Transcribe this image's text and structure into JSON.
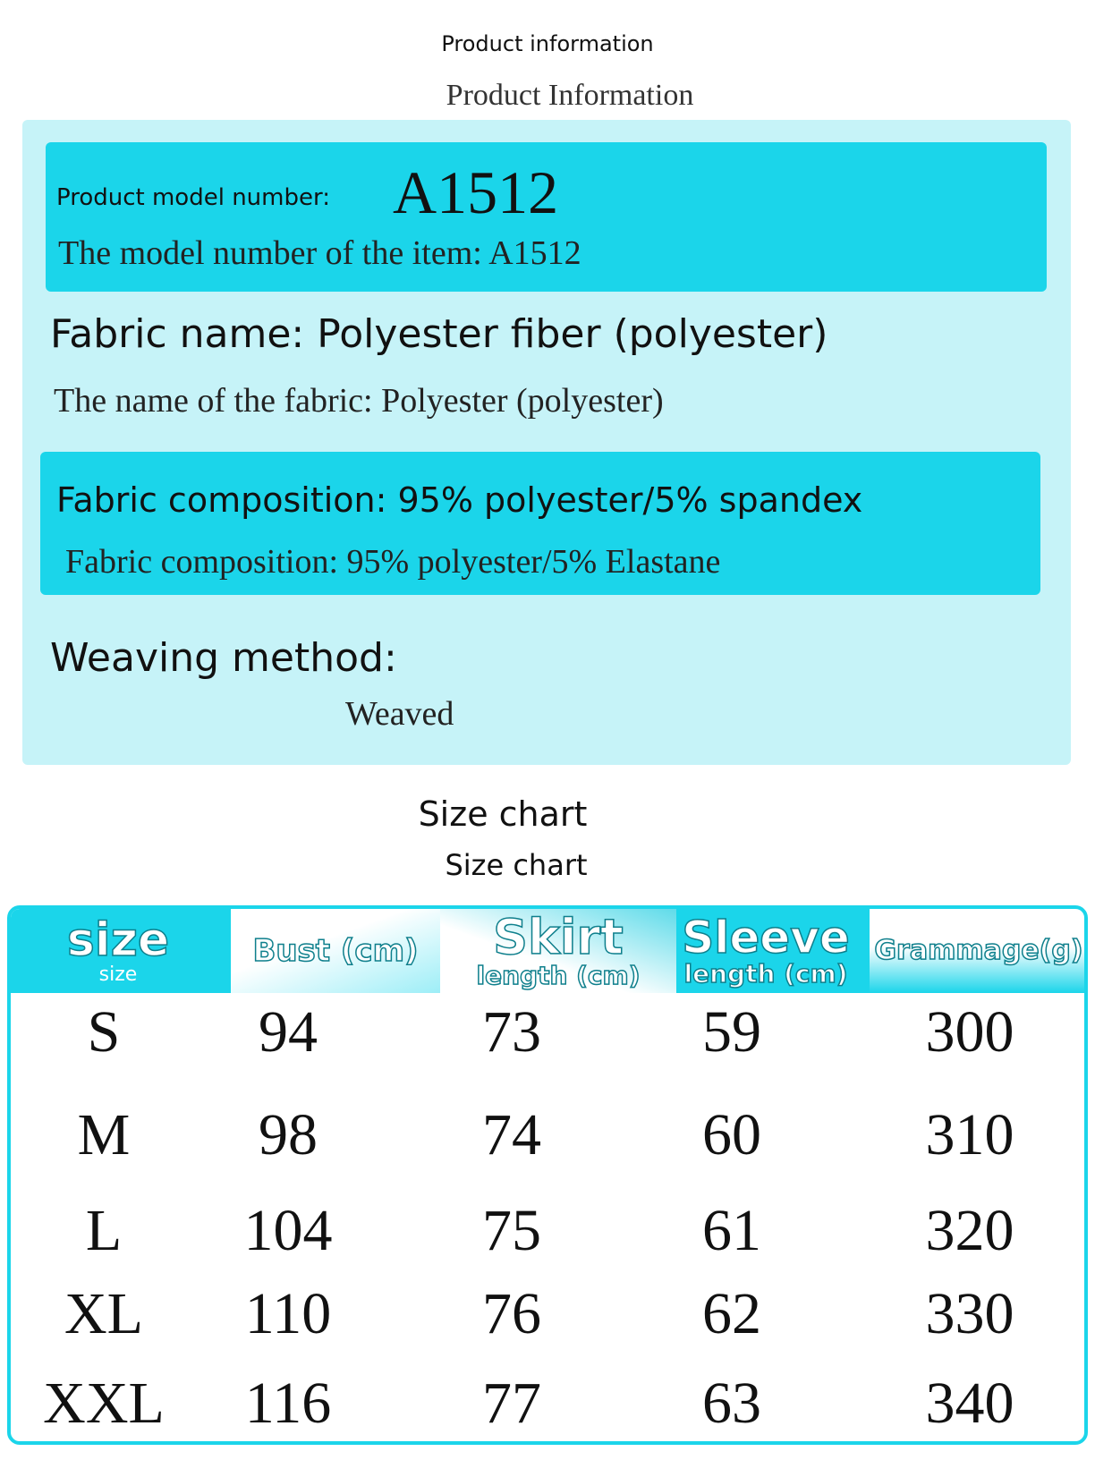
{
  "header": {
    "title": "Product information",
    "subtitle": "Product Information"
  },
  "model": {
    "label": "Product model number:",
    "value": "A1512",
    "translation": "The model number of the item:  A1512"
  },
  "fabric_name": {
    "label": "Fabric name: Polyester fiber (polyester)",
    "translation": "The name of the fabric:  Polyester (polyester)"
  },
  "composition": {
    "label": "Fabric composition: 95% polyester/5% spandex",
    "translation": "Fabric composition:  95% polyester/5% Elastane"
  },
  "weaving": {
    "label": "Weaving method:",
    "translation": "Weaved"
  },
  "size_chart": {
    "title": "Size chart",
    "subtitle": "Size chart",
    "columns": [
      {
        "main": "size",
        "sub": "size"
      },
      {
        "main": "Bust (cm)",
        "sub": ""
      },
      {
        "main": "Skirt",
        "sub": "length (cm)"
      },
      {
        "main": "Sleeve",
        "sub": "length (cm)"
      },
      {
        "main": "Grammage(g)",
        "sub": ""
      }
    ],
    "rows": [
      [
        "S",
        "94",
        "73",
        "59",
        "300"
      ],
      [
        "M",
        "98",
        "74",
        "60",
        "310"
      ],
      [
        "L",
        "104",
        "75",
        "61",
        "320"
      ],
      [
        "XL",
        "110",
        "76",
        "62",
        "330"
      ],
      [
        "XXL",
        "116",
        "77",
        "63",
        "340"
      ]
    ]
  },
  "colors": {
    "accent": "#1bd5ea",
    "panel": "#c6f3f8"
  }
}
